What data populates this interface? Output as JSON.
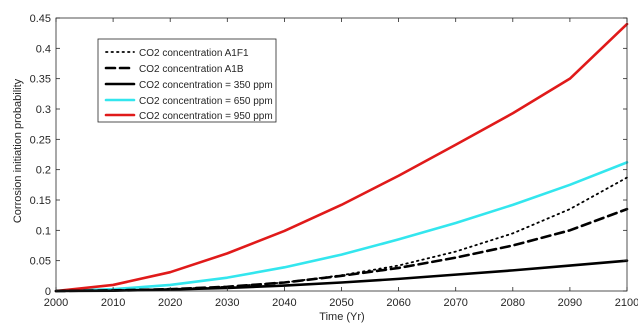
{
  "chart_data": {
    "type": "line",
    "title": "",
    "xlabel": "Time (Yr)",
    "ylabel": "Corrosion initiation probability",
    "xlim": [
      2000,
      2100
    ],
    "ylim": [
      0,
      0.45
    ],
    "xticks": [
      2000,
      2010,
      2020,
      2030,
      2040,
      2050,
      2060,
      2070,
      2080,
      2090,
      2100
    ],
    "yticks": [
      0,
      0.05,
      0.1,
      0.15,
      0.2,
      0.25,
      0.3,
      0.35,
      0.4,
      0.45
    ],
    "ytick_labels": [
      "0",
      "0.05",
      "0.1",
      "0.15",
      "0.2",
      "0.25",
      "0.3",
      "0.35",
      "0.4",
      "0.45"
    ],
    "grid": false,
    "legend_position": "top-left",
    "x": [
      2000,
      2010,
      2020,
      2030,
      2040,
      2050,
      2060,
      2070,
      2080,
      2090,
      2100
    ],
    "series": [
      {
        "name": "CO2 concentration A1F1",
        "color": "#000000",
        "style": "dotted",
        "values": [
          0,
          0.001,
          0.003,
          0.007,
          0.014,
          0.026,
          0.042,
          0.065,
          0.095,
          0.135,
          0.187
        ]
      },
      {
        "name": "CO2 concentration A1B",
        "color": "#000000",
        "style": "dashed",
        "values": [
          0,
          0.001,
          0.003,
          0.007,
          0.014,
          0.025,
          0.038,
          0.055,
          0.075,
          0.1,
          0.135
        ]
      },
      {
        "name": "CO2 concentration = 350 ppm",
        "color": "#000000",
        "style": "solid",
        "values": [
          0,
          0.0005,
          0.0025,
          0.005,
          0.009,
          0.014,
          0.02,
          0.027,
          0.034,
          0.042,
          0.05
        ]
      },
      {
        "name": "CO2 concentration = 650 ppm",
        "color": "#33e6ee",
        "style": "solid",
        "values": [
          0,
          0.003,
          0.01,
          0.022,
          0.039,
          0.06,
          0.085,
          0.112,
          0.142,
          0.175,
          0.212
        ]
      },
      {
        "name": "CO2 concentration = 950 ppm",
        "color": "#e01a1a",
        "style": "solid",
        "values": [
          0,
          0.01,
          0.031,
          0.062,
          0.099,
          0.142,
          0.19,
          0.241,
          0.293,
          0.35,
          0.44
        ]
      }
    ]
  }
}
